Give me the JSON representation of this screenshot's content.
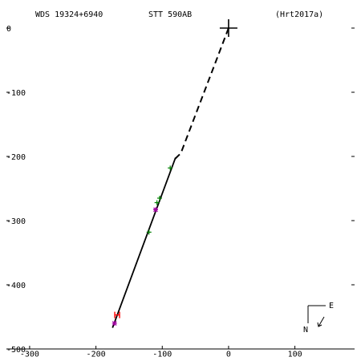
{
  "header": {
    "wds": "WDS 19324+6940",
    "name": "STT 590AB",
    "reference": "(Hrt2017a)"
  },
  "compass": {
    "north": "N",
    "east": "E"
  },
  "chart_data": {
    "type": "scatter",
    "title": "",
    "xlabel": "",
    "ylabel": "",
    "xlim": [
      -335,
      190
    ],
    "ylim": [
      -500,
      0
    ],
    "x_ticks": [
      -300,
      -200,
      -100,
      0,
      100
    ],
    "y_ticks": [
      0,
      -100,
      -200,
      -300,
      -400,
      -500
    ],
    "grid": false,
    "orbit_arc": {
      "x": [
        -80,
        -175
      ],
      "y": [
        -202,
        -467
      ]
    },
    "path_to_origin": {
      "x": [
        0,
        -72,
        -82
      ],
      "y": [
        0,
        -195,
        -205
      ]
    },
    "observations": [
      {
        "x": -120,
        "y": -318,
        "color": "#008000",
        "marker": "+"
      },
      {
        "x": -110,
        "y": -283,
        "color": "#a000a0",
        "marker": "*"
      },
      {
        "x": -108,
        "y": -272,
        "color": "#008000",
        "marker": "+"
      },
      {
        "x": -104,
        "y": -265,
        "color": "#008000",
        "marker": "+"
      },
      {
        "x": -88,
        "y": -218,
        "color": "#008000",
        "marker": "+"
      },
      {
        "x": -168,
        "y": -447,
        "color": "#ff0000",
        "marker": "H"
      },
      {
        "x": -172,
        "y": -460,
        "color": "#a000a0",
        "marker": "*"
      }
    ],
    "origin": {
      "x": 0,
      "y": 0
    }
  }
}
